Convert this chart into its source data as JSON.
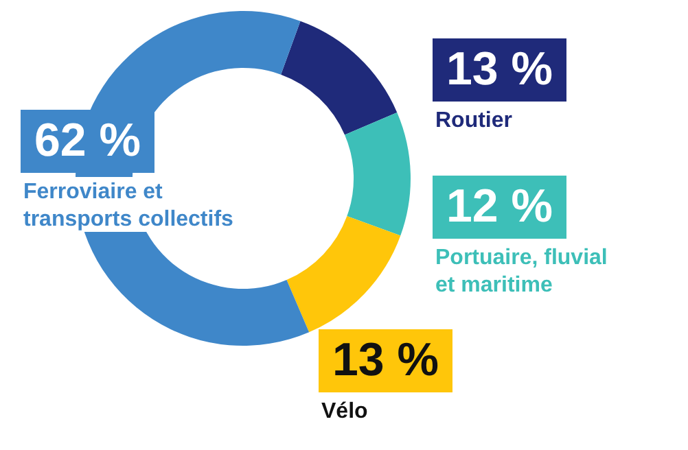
{
  "chart_data": {
    "type": "donut",
    "categories": [
      "Routier",
      "Portuaire, fluvial et maritime",
      "Vélo",
      "Ferroviaire et transports collectifs"
    ],
    "values": [
      13,
      12,
      13,
      62
    ],
    "colors": [
      "#1f2a7a",
      "#3dbfb8",
      "#ffc60a",
      "#3f87c9"
    ],
    "value_labels": [
      "13 %",
      "12 %",
      "13 %",
      "62 %"
    ],
    "legend": false
  }
}
